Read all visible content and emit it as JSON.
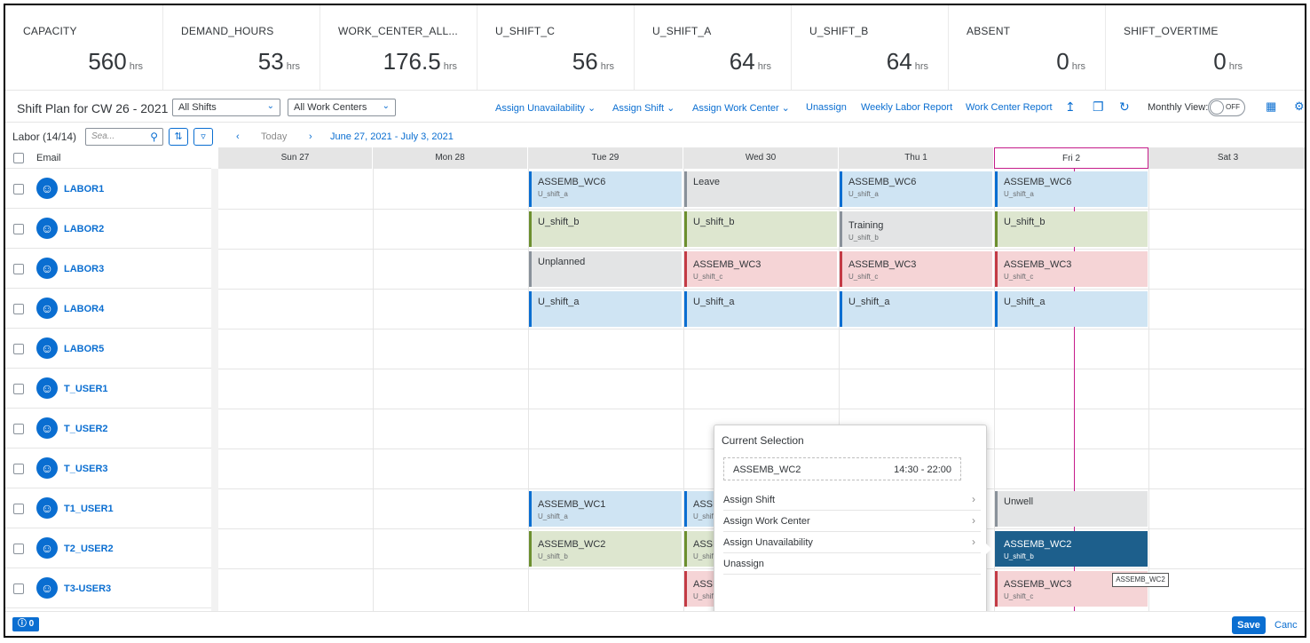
{
  "kpis": [
    {
      "label": "CAPACITY",
      "value": "560",
      "unit": "hrs"
    },
    {
      "label": "DEMAND_HOURS",
      "value": "53",
      "unit": "hrs"
    },
    {
      "label": "WORK_CENTER_ALL...",
      "value": "176.5",
      "unit": "hrs"
    },
    {
      "label": "U_SHIFT_C",
      "value": "56",
      "unit": "hrs"
    },
    {
      "label": "U_SHIFT_A",
      "value": "64",
      "unit": "hrs"
    },
    {
      "label": "U_SHIFT_B",
      "value": "64",
      "unit": "hrs"
    },
    {
      "label": "ABSENT",
      "value": "0",
      "unit": "hrs"
    },
    {
      "label": "SHIFT_OVERTIME",
      "value": "0",
      "unit": "hrs"
    }
  ],
  "toolbar": {
    "title": "Shift Plan for CW 26 - 2021",
    "shift_filter": "All Shifts",
    "work_center_filter": "All Work Centers",
    "assign_unavailability": "Assign Unavailability",
    "assign_shift": "Assign Shift",
    "assign_work_center": "Assign Work Center",
    "unassign": "Unassign",
    "weekly_labor_report": "Weekly Labor Report",
    "work_center_report": "Work Center Report",
    "monthly_view": "Monthly View:",
    "toggle_state": "OFF"
  },
  "left": {
    "title": "Labor (14/14)",
    "search_placeholder": "Sea...",
    "email_header": "Email"
  },
  "nav": {
    "today": "Today",
    "range": "June 27, 2021 - July 3, 2021"
  },
  "days": [
    "Sun 27",
    "Mon 28",
    "Tue 29",
    "Wed 30",
    "Thu 1",
    "Fri 2",
    "Sat 3"
  ],
  "labor": [
    "LABOR1",
    "LABOR2",
    "LABOR3",
    "LABOR4",
    "LABOR5",
    "T_USER1",
    "T_USER2",
    "T_USER3",
    "T1_USER1",
    "T2_USER2",
    "T3-USER3"
  ],
  "appointments": {
    "r0d2": {
      "title": "ASSEMB_WC6",
      "sub": "U_shift_a"
    },
    "r0d3": {
      "title": "Leave",
      "sub": ""
    },
    "r0d4": {
      "title": "ASSEMB_WC6",
      "sub": "U_shift_a"
    },
    "r0d5": {
      "title": "ASSEMB_WC6",
      "sub": "U_shift_a"
    },
    "r1d2": {
      "title": "U_shift_b",
      "sub": ""
    },
    "r1d3": {
      "title": "U_shift_b",
      "sub": ""
    },
    "r1d4": {
      "title": "Training",
      "sub": "U_shift_b"
    },
    "r1d5": {
      "title": "U_shift_b",
      "sub": ""
    },
    "r2d2": {
      "title": "Unplanned",
      "sub": ""
    },
    "r2d3": {
      "title": "ASSEMB_WC3",
      "sub": "U_shift_c"
    },
    "r2d4": {
      "title": "ASSEMB_WC3",
      "sub": "U_shift_c"
    },
    "r2d5": {
      "title": "ASSEMB_WC3",
      "sub": "U_shift_c"
    },
    "r3d2": {
      "title": "U_shift_a",
      "sub": ""
    },
    "r3d3": {
      "title": "U_shift_a",
      "sub": ""
    },
    "r3d4": {
      "title": "U_shift_a",
      "sub": ""
    },
    "r3d5": {
      "title": "U_shift_a",
      "sub": ""
    },
    "r8d2": {
      "title": "ASSEMB_WC1",
      "sub": "U_shift_a"
    },
    "r8d3": {
      "title": "ASSE",
      "sub": "U_shif"
    },
    "r8d5": {
      "title": "Unwell",
      "sub": ""
    },
    "r9d2": {
      "title": "ASSEMB_WC2",
      "sub": "U_shift_b"
    },
    "r9d3": {
      "title": "ASSE",
      "sub": "U_shif"
    },
    "r9d5": {
      "title": "ASSEMB_WC2",
      "sub": "U_shift_b"
    },
    "r10d3": {
      "title": "ASSE",
      "sub": "U_shif"
    },
    "r10d5": {
      "title": "ASSEMB_WC3",
      "sub": "U_shift_c"
    }
  },
  "popover": {
    "title": "Current Selection",
    "selected_name": "ASSEMB_WC2",
    "selected_time": "14:30 - 22:00",
    "items": [
      "Assign Shift",
      "Assign Work Center",
      "Assign Unavailability",
      "Unassign"
    ]
  },
  "tooltip": "ASSEMB_WC2",
  "footer": {
    "messages": "0",
    "save": "Save",
    "cancel": "Canc"
  },
  "colors": {
    "accent": "#0a6ed1",
    "today_marker": "#c51c8a",
    "selected": "#1d5f8c"
  }
}
